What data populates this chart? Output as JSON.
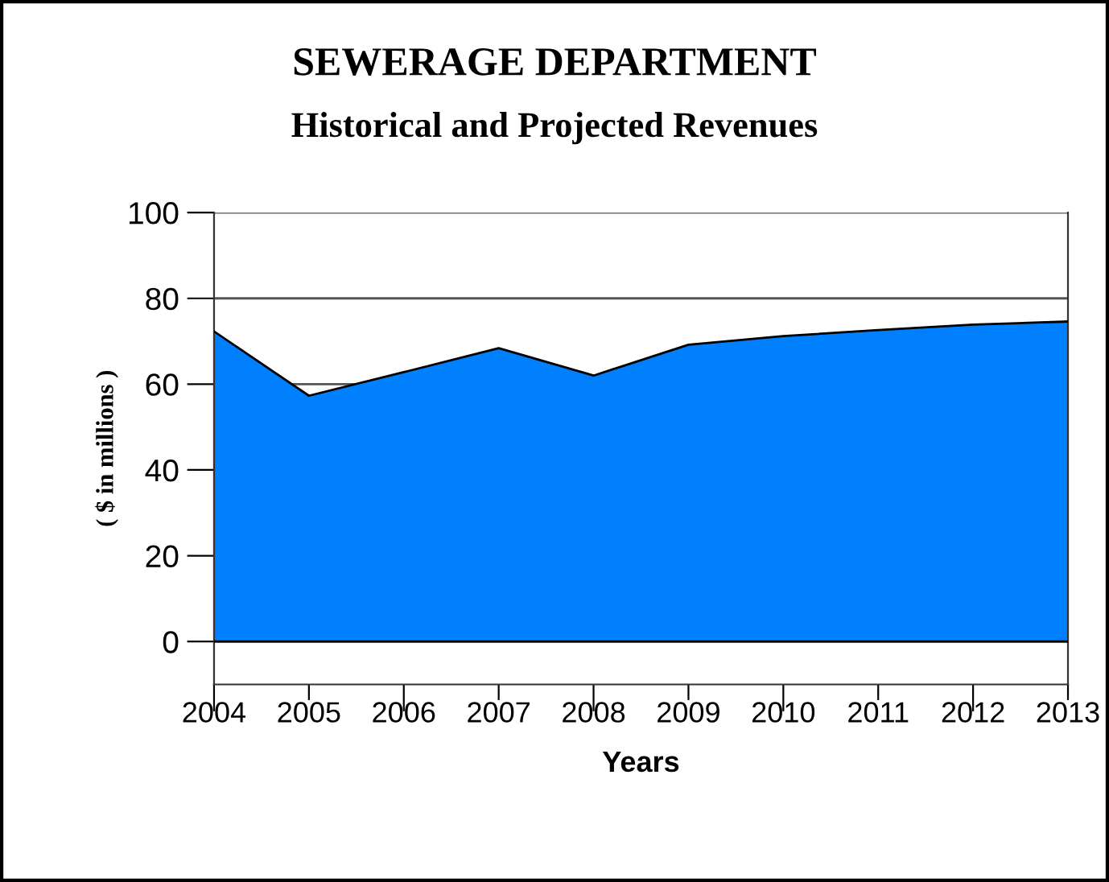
{
  "chart_data": {
    "type": "area",
    "title": "SEWERAGE DEPARTMENT",
    "subtitle": "Historical and Projected Revenues",
    "xlabel": "Years",
    "ylabel": "( $ in millions )",
    "x": [
      2004,
      2005,
      2006,
      2007,
      2008,
      2009,
      2010,
      2011,
      2012,
      2013
    ],
    "series": [
      {
        "color": "#007fff",
        "values": [
          72.3,
          57.3,
          62.8,
          68.4,
          62.0,
          69.2,
          71.2,
          72.6,
          73.9,
          74.6
        ]
      }
    ],
    "xlim": [
      2004,
      2013
    ],
    "xticks": [
      2004,
      2005,
      2006,
      2007,
      2008,
      2009,
      2010,
      2011,
      2012,
      2013
    ],
    "ylim": [
      -10,
      100
    ],
    "yticks": [
      0,
      20,
      40,
      60,
      80,
      100
    ],
    "grid": "y",
    "legend": false
  }
}
